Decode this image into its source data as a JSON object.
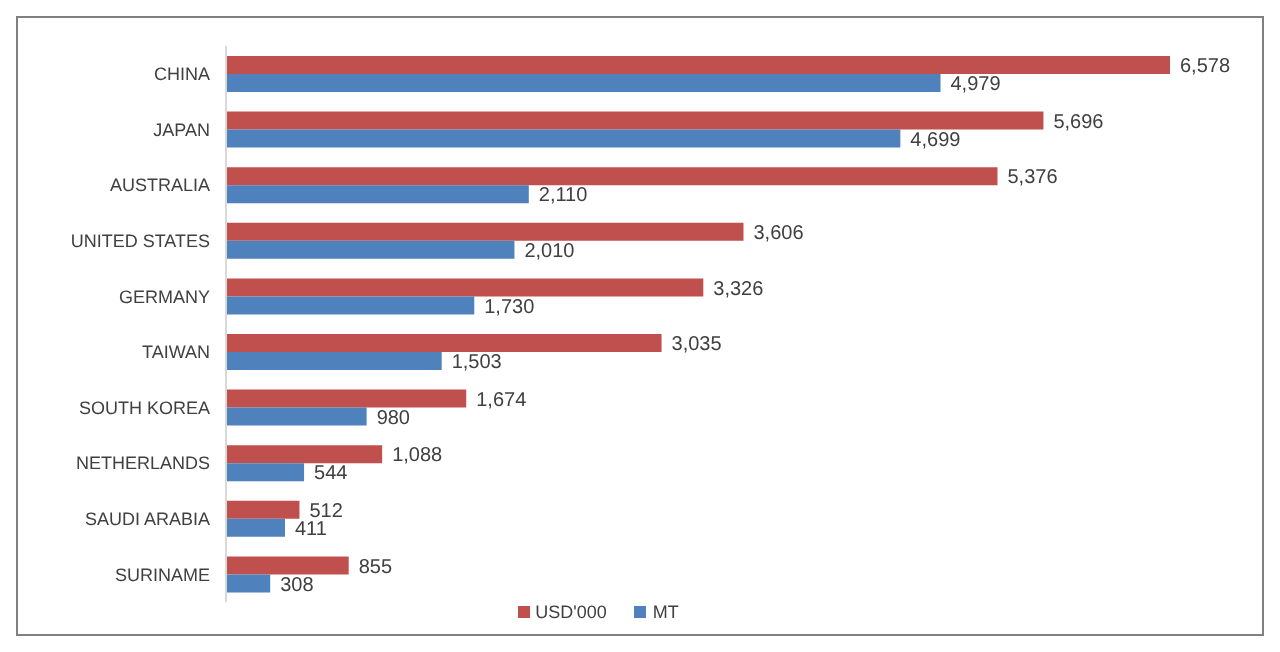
{
  "chart_data": {
    "type": "bar",
    "orientation": "horizontal",
    "legend": "bottom",
    "grid": false,
    "categories": [
      "CHINA",
      "JAPAN",
      "AUSTRALIA",
      "UNITED STATES",
      "GERMANY",
      "TAIWAN",
      "SOUTH KOREA",
      "NETHERLANDS",
      "SAUDI ARABIA",
      "SURINAME"
    ],
    "series": [
      {
        "name": "USD'000",
        "color": "#c0504d",
        "values": [
          6578,
          5696,
          5376,
          3606,
          3326,
          3035,
          1674,
          1088,
          512,
          855
        ],
        "value_labels": [
          "6,578",
          "5,696",
          "5,376",
          "3,606",
          "3,326",
          "3,035",
          "1,674",
          "1,088",
          "512",
          "855"
        ]
      },
      {
        "name": "MT",
        "color": "#4f81bd",
        "values": [
          4979,
          4699,
          2110,
          2010,
          1730,
          1503,
          980,
          544,
          411,
          308
        ],
        "value_labels": [
          "4,979",
          "4,699",
          "2,110",
          "2,010",
          "1,730",
          "1,503",
          "980",
          "544",
          "411",
          "308"
        ]
      }
    ]
  }
}
